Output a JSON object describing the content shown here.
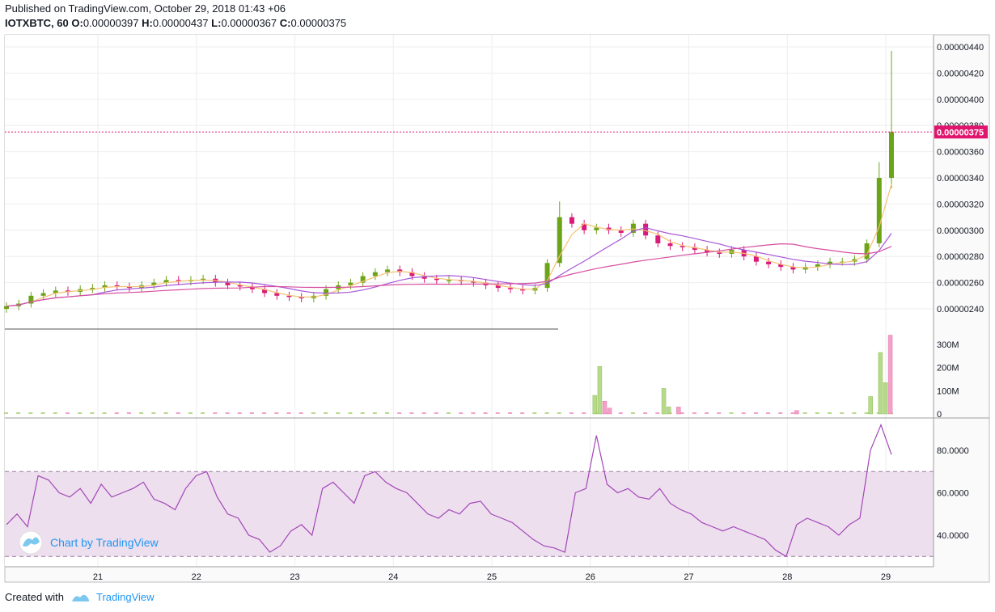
{
  "header": {
    "published": "Published on TradingView.com, October 29, 2018 01:43 +06",
    "symbol": "IOTXBTC, 60",
    "o_label": "O:",
    "o_value": "0.00000397",
    "h_label": "H:",
    "h_value": "0.00000437",
    "l_label": "L:",
    "l_value": "0.00000367",
    "c_label": "C:",
    "c_value": "0.00000375"
  },
  "watermark": "Chart by TradingView",
  "footer": {
    "created_with": "Created with",
    "brand": "TradingView"
  },
  "colors": {
    "up": "#6ba417",
    "down": "#d81b7a",
    "ma_fast": "#f5c170",
    "ma_mid": "#a855d8",
    "ma_slow": "#d64da0",
    "rsi_line": "#a347b8",
    "rsi_band": "#eddfee",
    "vol_up": "#b7d98b",
    "vol_down": "#f2a2c8",
    "last_price": "#e0156d"
  },
  "chart_data": {
    "type": "candlestick",
    "x_tick_labels": [
      "21",
      "22",
      "23",
      "24",
      "25",
      "26",
      "27",
      "28",
      "29"
    ],
    "price_axis": {
      "ylim": [
        2.3e-06,
        4.5e-06
      ],
      "tick_labels": [
        "0.00000440",
        "0.00000420",
        "0.00000400",
        "0.00000380",
        "0.00000360",
        "0.00000340",
        "0.00000320",
        "0.00000300",
        "0.00000280",
        "0.00000260",
        "0.00000240"
      ],
      "ticks": [
        440,
        420,
        400,
        380,
        360,
        340,
        320,
        300,
        280,
        260,
        240
      ],
      "last_price_label": "0.00000375",
      "last_price": 375
    },
    "price_series_close": [
      242,
      244,
      250,
      252,
      254,
      253,
      255,
      256,
      258,
      257,
      256,
      258,
      260,
      262,
      261,
      262,
      263,
      260,
      258,
      257,
      255,
      252,
      250,
      249,
      248,
      250,
      255,
      258,
      260,
      265,
      268,
      270,
      268,
      265,
      263,
      262,
      262,
      261,
      260,
      258,
      256,
      255,
      254,
      256,
      275,
      310,
      305,
      300,
      302,
      300,
      298,
      305,
      296,
      290,
      288,
      287,
      285,
      283,
      282,
      285,
      280,
      276,
      274,
      272,
      270,
      272,
      274,
      276,
      276,
      278,
      290,
      340,
      375
    ],
    "volume_axis": {
      "tick_labels": [
        "300M",
        "200M",
        "100M",
        "0"
      ],
      "ticks": [
        300,
        200,
        100,
        0
      ],
      "max": 340
    },
    "volume_spikes": [
      {
        "day": 26.05,
        "value": 80,
        "dir": "up"
      },
      {
        "day": 26.1,
        "value": 205,
        "dir": "up"
      },
      {
        "day": 26.15,
        "value": 55,
        "dir": "down"
      },
      {
        "day": 26.2,
        "value": 25,
        "dir": "down"
      },
      {
        "day": 26.75,
        "value": 110,
        "dir": "up"
      },
      {
        "day": 26.8,
        "value": 30,
        "dir": "up"
      },
      {
        "day": 26.9,
        "value": 30,
        "dir": "down"
      },
      {
        "day": 28.1,
        "value": 15,
        "dir": "down"
      },
      {
        "day": 28.85,
        "value": 75,
        "dir": "up"
      },
      {
        "day": 28.95,
        "value": 265,
        "dir": "up"
      },
      {
        "day": 29.0,
        "value": 135,
        "dir": "up"
      },
      {
        "day": 29.05,
        "value": 340,
        "dir": "down"
      }
    ],
    "rsi_axis": {
      "tick_labels": [
        "80.0000",
        "60.0000",
        "40.0000"
      ],
      "ticks": [
        80,
        60,
        40
      ],
      "upper_band": 70,
      "lower_band": 30
    },
    "rsi_series": [
      45,
      50,
      44,
      68,
      66,
      60,
      58,
      62,
      55,
      64,
      58,
      60,
      62,
      65,
      57,
      55,
      52,
      62,
      68,
      70,
      58,
      50,
      48,
      40,
      38,
      32,
      35,
      42,
      45,
      40,
      62,
      65,
      60,
      55,
      68,
      70,
      65,
      62,
      60,
      55,
      50,
      48,
      52,
      50,
      55,
      56,
      50,
      48,
      46,
      42,
      38,
      35,
      34,
      32,
      60,
      62,
      87,
      64,
      60,
      62,
      58,
      57,
      62,
      55,
      52,
      50,
      46,
      44,
      42,
      44,
      42,
      40,
      38,
      33,
      30,
      45,
      48,
      46,
      44,
      40,
      45,
      48,
      80,
      92,
      78
    ]
  }
}
